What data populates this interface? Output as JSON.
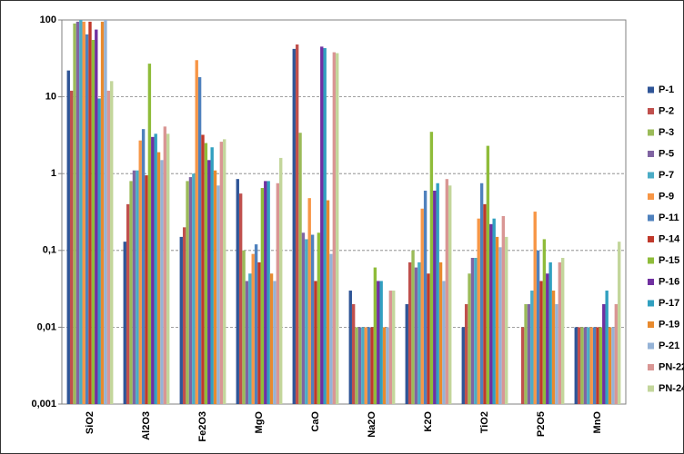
{
  "chart_data": {
    "type": "bar",
    "categories": [
      "SiO2",
      "Al2O3",
      "Fe2O3",
      "MgO",
      "CaO",
      "Na2O",
      "K2O",
      "TiO2",
      "P2O5",
      "MnO"
    ],
    "log_scale": true,
    "grid": true,
    "legend": "right",
    "ylim": [
      0.001,
      100
    ],
    "yticks": [
      {
        "value": 0.001,
        "label": "0,001"
      },
      {
        "value": 0.01,
        "label": "0,01"
      },
      {
        "value": 0.1,
        "label": "0,1"
      },
      1,
      10,
      100
    ],
    "series": [
      {
        "name": "P-1",
        "color": "#2f5597",
        "values": [
          22,
          0.13,
          0.15,
          0.85,
          42,
          0.03,
          0.02,
          0.01,
          null,
          0.01
        ]
      },
      {
        "name": "P-2",
        "color": "#c0504d",
        "values": [
          12,
          0.4,
          0.2,
          0.55,
          48,
          0.02,
          0.07,
          0.02,
          0.01,
          0.01
        ]
      },
      {
        "name": "P-3",
        "color": "#9bbb59",
        "values": [
          90,
          0.8,
          0.8,
          0.1,
          3.4,
          0.01,
          0.1,
          0.05,
          0.02,
          0.01
        ]
      },
      {
        "name": "P-5",
        "color": "#8064a2",
        "values": [
          95,
          1.1,
          0.9,
          0.04,
          0.17,
          0.01,
          0.06,
          0.08,
          0.02,
          0.01
        ]
      },
      {
        "name": "P-7",
        "color": "#4bacc6",
        "values": [
          100,
          1.1,
          1,
          0.05,
          0.14,
          0.01,
          0.07,
          0.08,
          0.03,
          0.01
        ]
      },
      {
        "name": "P-9",
        "color": "#f79646",
        "values": [
          95,
          2.7,
          30,
          0.09,
          0.48,
          0.01,
          0.35,
          0.26,
          0.32,
          0.01
        ]
      },
      {
        "name": "P-11",
        "color": "#4f81bd",
        "values": [
          65,
          3.8,
          18,
          0.12,
          0.16,
          0.01,
          0.6,
          0.75,
          0.1,
          0.01
        ]
      },
      {
        "name": "P-14",
        "color": "#c0392b",
        "values": [
          95,
          0.95,
          3.2,
          0.07,
          0.04,
          0.01,
          0.05,
          0.4,
          0.04,
          0.01
        ]
      },
      {
        "name": "P-15",
        "color": "#8fbc3a",
        "values": [
          55,
          27,
          2.5,
          0.65,
          0.17,
          0.06,
          3.5,
          2.3,
          0.14,
          0.01
        ]
      },
      {
        "name": "P-16",
        "color": "#7030a0",
        "values": [
          75,
          3,
          1.5,
          0.8,
          45,
          0.04,
          0.6,
          0.22,
          0.05,
          0.02
        ]
      },
      {
        "name": "P-17",
        "color": "#31a0c0",
        "values": [
          9.5,
          3.3,
          2.2,
          0.8,
          43,
          0.04,
          0.75,
          0.26,
          0.07,
          0.03
        ]
      },
      {
        "name": "P-19",
        "color": "#e88a2e",
        "values": [
          95,
          1.9,
          1.1,
          0.05,
          0.45,
          0.01,
          0.07,
          0.15,
          0.03,
          0.01
        ]
      },
      {
        "name": "P-21",
        "color": "#95b3d7",
        "values": [
          100,
          1.5,
          0.7,
          0.04,
          0.09,
          0.01,
          0.04,
          0.11,
          0.02,
          0.01
        ]
      },
      {
        "name": "PN-22",
        "color": "#d99694",
        "values": [
          12,
          4.1,
          2.6,
          0.75,
          38,
          0.03,
          0.85,
          0.28,
          0.07,
          0.02
        ]
      },
      {
        "name": "PN-24",
        "color": "#c3d69b",
        "values": [
          16,
          3.3,
          2.8,
          1.6,
          37,
          0.03,
          0.7,
          0.15,
          0.08,
          0.13
        ]
      }
    ]
  }
}
